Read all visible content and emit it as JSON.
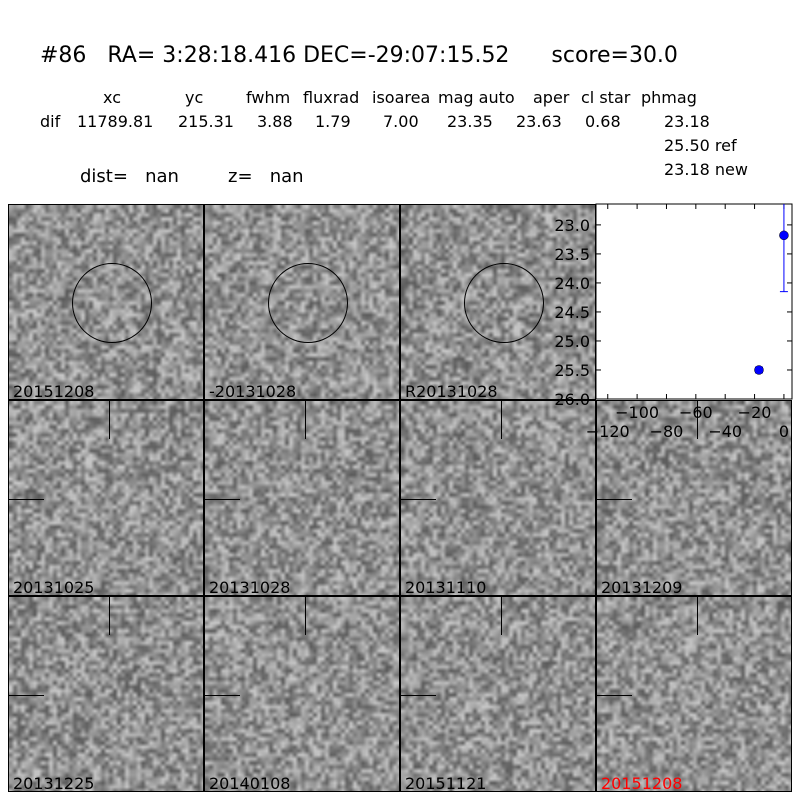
{
  "header": {
    "title": "#86   RA= 3:28:18.416 DEC=-29:07:15.52      score=30.0",
    "columns": [
      "xc",
      "yc",
      "fwhm",
      "fluxrad",
      "isoarea",
      "mag auto",
      "aper",
      "cl star",
      "phmag"
    ],
    "row_label": "dif",
    "values": [
      "11789.81",
      "215.31",
      "3.88",
      "1.79",
      "7.00",
      "23.35",
      "23.63",
      "0.68",
      "23.18"
    ],
    "phmag_ref": "25.50 ref",
    "phmag_new": "23.18 new",
    "dist": "dist=   nan",
    "z": "z=   nan"
  },
  "panels": [
    {
      "label": "20151208",
      "marker": "circle",
      "label_color": "#000000"
    },
    {
      "label": "-20131028",
      "marker": "circle",
      "label_color": "#000000"
    },
    {
      "label": "R20131028",
      "marker": "circle",
      "label_color": "#000000"
    },
    {
      "label": "20131025",
      "marker": "cross",
      "label_color": "#000000"
    },
    {
      "label": "20131028",
      "marker": "cross",
      "label_color": "#000000"
    },
    {
      "label": "20131110",
      "marker": "cross",
      "label_color": "#000000"
    },
    {
      "label": "20131209",
      "marker": "cross",
      "label_color": "#000000"
    },
    {
      "label": "20131225",
      "marker": "cross",
      "label_color": "#000000"
    },
    {
      "label": "20140108",
      "marker": "cross",
      "label_color": "#000000"
    },
    {
      "label": "20151121",
      "marker": "cross",
      "label_color": "#000000"
    },
    {
      "label": "20151208",
      "marker": "cross",
      "label_color": "#ff0000"
    }
  ],
  "chart_data": {
    "type": "scatter",
    "title": "",
    "xlabel": "",
    "ylabel": "",
    "xlim": [
      -128,
      5.5
    ],
    "ylim": [
      26.0,
      22.64
    ],
    "y_inverted": true,
    "xticks": [
      "−120",
      "−100",
      "−80",
      "−60",
      "−40",
      "−20",
      "0"
    ],
    "xtick_values": [
      -120,
      -100,
      -80,
      -60,
      -40,
      -20,
      0
    ],
    "yticks": [
      "23.0",
      "23.5",
      "24.0",
      "24.5",
      "25.0",
      "25.5",
      "26.0"
    ],
    "ytick_values": [
      23.0,
      23.5,
      24.0,
      24.5,
      25.0,
      25.5,
      26.0
    ],
    "points": [
      {
        "x": 0,
        "y": 23.18,
        "yerr_low": 24.15,
        "yerr_high": 22.2
      },
      {
        "x": -17,
        "y": 25.5,
        "yerr_low": 25.55,
        "yerr_high": 25.45
      }
    ],
    "color": "#0000ff",
    "grid": false
  }
}
